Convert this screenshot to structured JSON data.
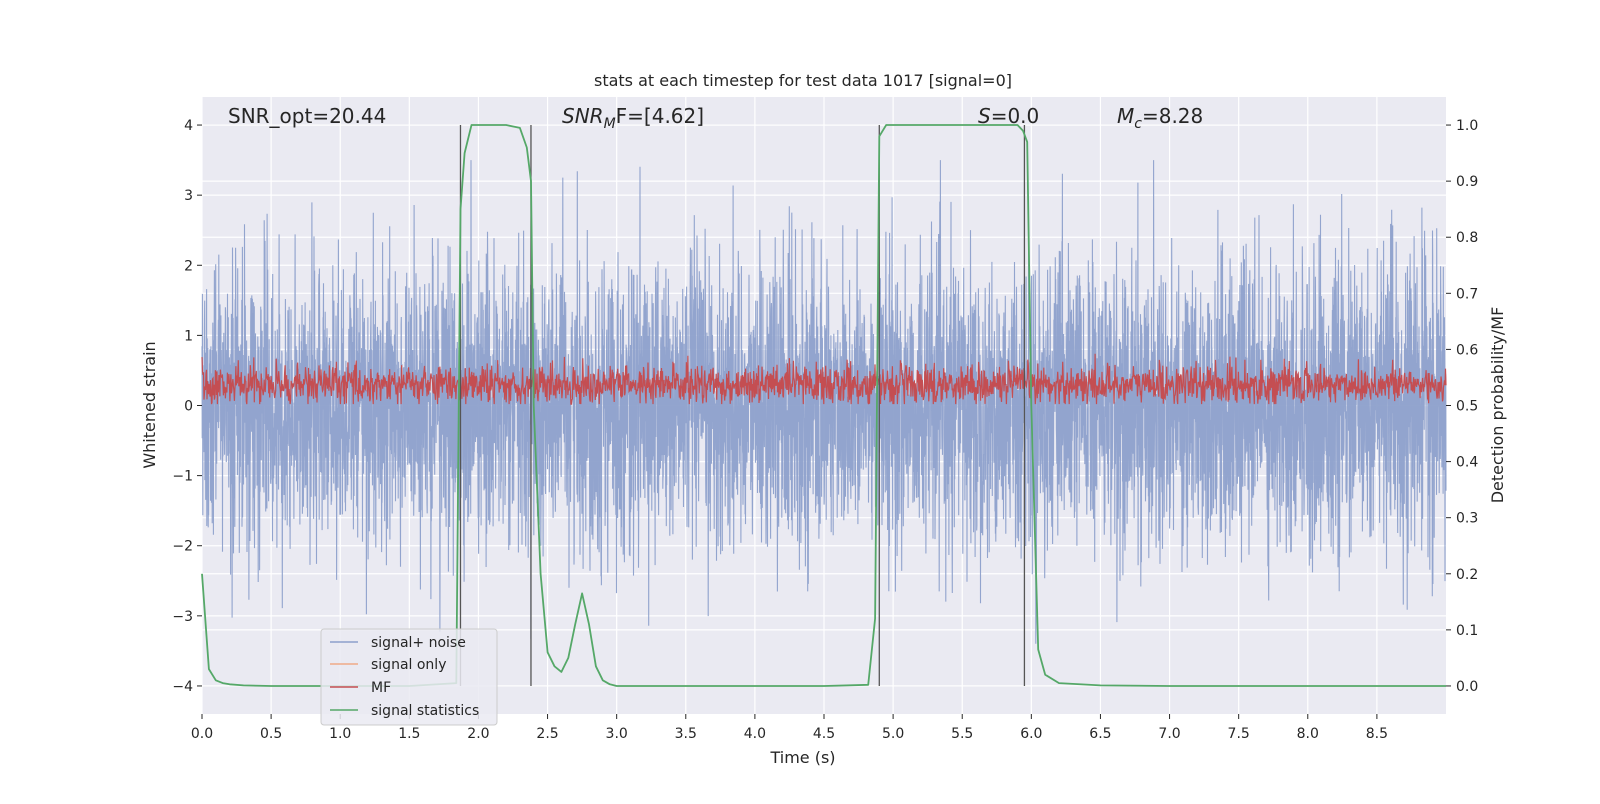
{
  "chart_data": {
    "type": "line",
    "title": "stats at each timestep for test data 1017 [signal=0]",
    "xlabel": "Time (s)",
    "ylabel": "Whitened strain",
    "y2label": "Detection probability/MF",
    "xlim": [
      0.0,
      9.0
    ],
    "ylim": [
      -4.4,
      4.4
    ],
    "y2lim": [
      -0.05,
      1.05
    ],
    "xticks": [
      0.0,
      0.5,
      1.0,
      1.5,
      2.0,
      2.5,
      3.0,
      3.5,
      4.0,
      4.5,
      5.0,
      5.5,
      6.0,
      6.5,
      7.0,
      7.5,
      8.0,
      8.5
    ],
    "xtick_labels": [
      "0.0",
      "0.5",
      "1.0",
      "1.5",
      "2.0",
      "2.5",
      "3.0",
      "3.5",
      "4.0",
      "4.5",
      "5.0",
      "5.5",
      "6.0",
      "6.5",
      "7.0",
      "7.5",
      "8.0",
      "8.5"
    ],
    "yticks": [
      -4,
      -3,
      -2,
      -1,
      0,
      1,
      2,
      3,
      4
    ],
    "ytick_labels": [
      "−4",
      "−3",
      "−2",
      "−1",
      "0",
      "1",
      "2",
      "3",
      "4"
    ],
    "y2ticks": [
      0.0,
      0.1,
      0.2,
      0.3,
      0.4,
      0.5,
      0.6,
      0.7,
      0.8,
      0.9,
      1.0
    ],
    "y2tick_labels": [
      "0.0",
      "0.1",
      "0.2",
      "0.3",
      "0.4",
      "0.5",
      "0.6",
      "0.7",
      "0.8",
      "0.9",
      "1.0"
    ],
    "annotations": {
      "snr_opt": "SNR_opt=20.44",
      "snr_mf_main": "SNR",
      "snr_mf_sub": "M",
      "snr_mf_rest": "F=[4.62]",
      "s_main": "S",
      "s_rest": "=0.0",
      "mc_main": "M",
      "mc_sub": "c",
      "mc_rest": "=8.28"
    },
    "legend": {
      "position": "lower-left",
      "entries": [
        {
          "label": "signal+ noise",
          "color": "#8da0cb"
        },
        {
          "label": "signal only",
          "color": "#f0a987"
        },
        {
          "label": "MF",
          "color": "#c44e52"
        },
        {
          "label": "signal statistics",
          "color": "#55a868"
        }
      ]
    },
    "series": [
      {
        "name": "signal+ noise",
        "color": "#8da0cb",
        "kind": "noise",
        "description": "whitened strain, approx. Gaussian noise, sigma ~1, range about -3.6 to 3.5"
      },
      {
        "name": "MF",
        "color": "#c44e52",
        "kind": "noise",
        "center": 0.3,
        "description": "matched filter output, oscillating around 0.3 (range ~0.05 to 1.0)"
      },
      {
        "name": "signal statistics",
        "color": "#55a868",
        "axis": "right",
        "x": [
          0.0,
          0.05,
          0.1,
          0.15,
          0.2,
          0.3,
          0.5,
          1.0,
          1.5,
          1.84,
          1.87,
          1.9,
          1.95,
          2.0,
          2.1,
          2.2,
          2.3,
          2.35,
          2.38,
          2.4,
          2.45,
          2.5,
          2.55,
          2.6,
          2.65,
          2.7,
          2.75,
          2.8,
          2.85,
          2.9,
          2.95,
          3.0,
          3.5,
          4.0,
          4.5,
          4.82,
          4.87,
          4.9,
          4.95,
          5.0,
          5.5,
          5.9,
          5.94,
          5.97,
          6.0,
          6.05,
          6.1,
          6.2,
          6.5,
          7.0,
          8.0,
          9.0
        ],
        "y": [
          0.2,
          0.03,
          0.01,
          0.005,
          0.003,
          0.001,
          0.0,
          0.0,
          0.0,
          0.005,
          0.85,
          0.95,
          1.0,
          1.0,
          1.0,
          1.0,
          0.995,
          0.96,
          0.9,
          0.5,
          0.2,
          0.06,
          0.035,
          0.025,
          0.05,
          0.11,
          0.165,
          0.11,
          0.035,
          0.01,
          0.003,
          0.0,
          0.0,
          0.0,
          0.0,
          0.002,
          0.12,
          0.98,
          1.0,
          1.0,
          1.0,
          1.0,
          0.99,
          0.97,
          0.5,
          0.065,
          0.02,
          0.005,
          0.001,
          0.0,
          0.0,
          0.0
        ]
      }
    ],
    "vlines": {
      "color": "#555555",
      "x": [
        1.87,
        2.38,
        4.9,
        5.95
      ],
      "ymin": -4.0,
      "ymax": 4.0
    }
  }
}
